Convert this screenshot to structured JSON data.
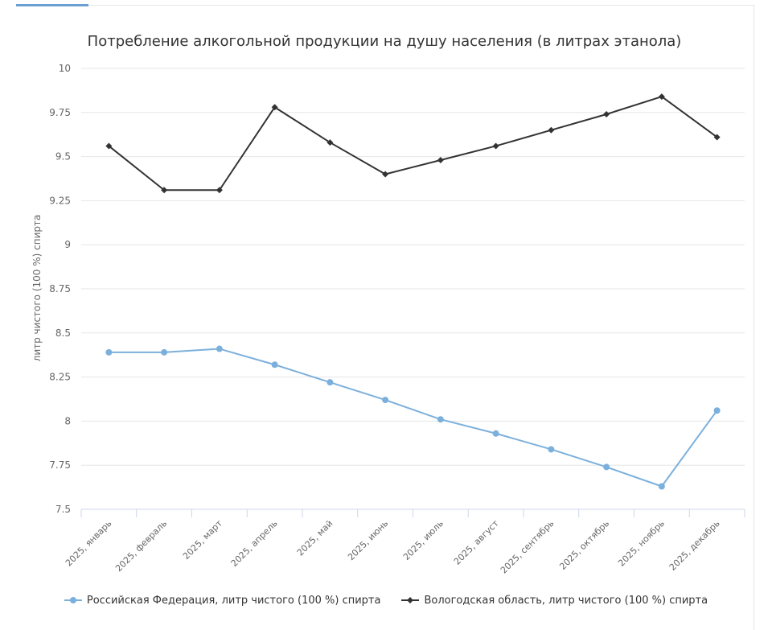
{
  "chart_data": {
    "type": "line",
    "title": "Потребление алкогольной продукции на душу населения (в литрах этанола)",
    "ylabel": "литр чистого (100 %) спирта",
    "xlabel": "",
    "ylim": [
      7.5,
      10
    ],
    "yticks": [
      "7.5",
      "7.75",
      "8",
      "8.25",
      "8.5",
      "8.75",
      "9",
      "9.25",
      "9.5",
      "9.75",
      "10"
    ],
    "categories": [
      "2025, январь",
      "2025, февраль",
      "2025, март",
      "2025, апрель",
      "2025, май",
      "2025, июнь",
      "2025, июль",
      "2025, август",
      "2025, сентябрь",
      "2025, октябрь",
      "2025, ноябрь",
      "2025, декабрь"
    ],
    "grid": true,
    "legend_position": "bottom",
    "series": [
      {
        "name": "Российская Федерация, литр чистого (100 %) спирта",
        "color": "#7cb0dc",
        "marker": "circle",
        "values": [
          8.39,
          8.39,
          8.41,
          8.32,
          8.22,
          8.12,
          8.01,
          7.93,
          7.84,
          7.74,
          7.63,
          8.06
        ]
      },
      {
        "name": "Вологодская область, литр чистого (100 %) спирта",
        "color": "#333333",
        "marker": "diamond",
        "values": [
          9.56,
          9.31,
          9.31,
          9.78,
          9.58,
          9.4,
          9.48,
          9.56,
          9.65,
          9.74,
          9.84,
          9.61
        ]
      }
    ]
  }
}
